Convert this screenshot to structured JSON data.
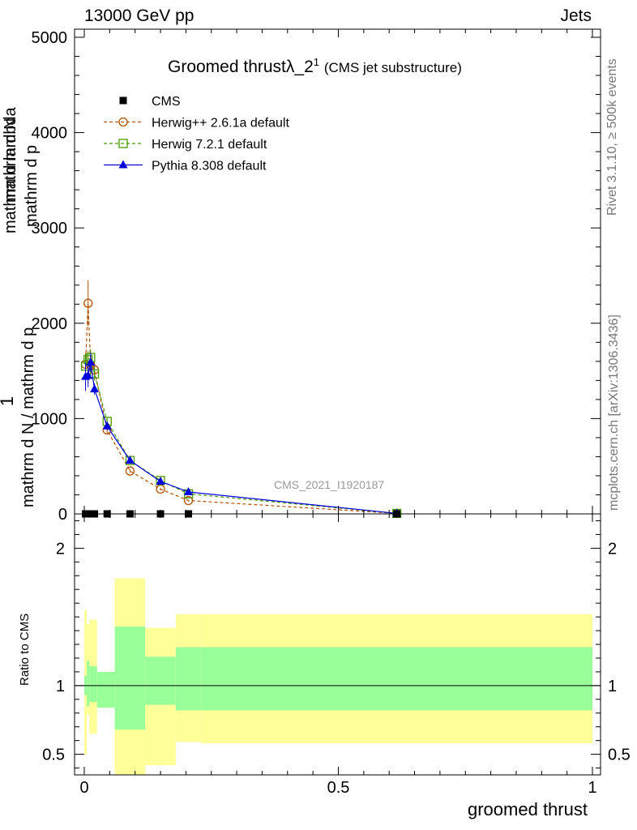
{
  "header": {
    "left": "13000 GeV pp",
    "right": "Jets"
  },
  "side_labels": {
    "rivet": "Rivet 3.1.10, ≥ 500k events",
    "mcplots": "mcplots.cern.ch [arXiv:1306.3436]"
  },
  "chart_data": {
    "type": "line",
    "title": "Groomed thrustλ_2",
    "title_superscript": "1",
    "subtitle": "(CMS jet substructure)",
    "watermark": "CMS_2021_I1920187",
    "xlabel": "groomed thrust",
    "ylabel_main": {
      "numerator": "1",
      "line1": "mathrm d N / mathrm d p",
      "line2": "mathrm d N",
      "line3": "mathrm d p",
      "line4": "mathrm d lambda",
      "full": "mathrm dN mathrm d p_T mathrm d lambda / mathrm d N / mathrm d p_T"
    },
    "ylabel_ratio": "Ratio to CMS",
    "xlim": [
      0,
      1
    ],
    "ylim": [
      0,
      5100
    ],
    "ratio_ylim": [
      0.35,
      2.25
    ],
    "x_ticks": [
      "0",
      "0.5",
      "1"
    ],
    "y_ticks": [
      "0",
      "1000",
      "2000",
      "3000",
      "4000",
      "5000"
    ],
    "ratio_ticks": [
      "0.5",
      "1",
      "2"
    ],
    "legend_position": "top-left",
    "legend": [
      "CMS",
      "Herwig++ 2.6.1a default",
      "Herwig 7.2.1 default",
      "Pythia 8.308 default"
    ],
    "colors": {
      "cms": "#000000",
      "herwigpp": "#b05000",
      "herwig7": "#4a9a00",
      "pythia": "#0000dd",
      "band_inner": "#99ff99",
      "band_outer": "#ffff99"
    },
    "cms": {
      "name": "CMS",
      "x": [
        0.0025,
        0.0075,
        0.0125,
        0.02,
        0.045,
        0.09,
        0.15,
        0.205,
        0.615
      ],
      "y": [
        0,
        0,
        0,
        0,
        0,
        0,
        0,
        0,
        0
      ]
    },
    "series": [
      {
        "name": "Herwig++ 2.6.1a default",
        "x": [
          0.0025,
          0.0075,
          0.0125,
          0.02,
          0.045,
          0.09,
          0.15,
          0.205,
          0.615
        ],
        "y": [
          1570,
          2210,
          1560,
          1510,
          880,
          450,
          260,
          140,
          5
        ],
        "err": [
          120,
          240,
          110,
          80,
          40,
          20,
          15,
          10,
          2
        ]
      },
      {
        "name": "Herwig 7.2.1 default",
        "x": [
          0.0025,
          0.0075,
          0.0125,
          0.02,
          0.045,
          0.09,
          0.15,
          0.205,
          0.615
        ],
        "y": [
          1550,
          1620,
          1640,
          1470,
          970,
          560,
          350,
          210,
          5
        ],
        "err": [
          120,
          90,
          90,
          70,
          40,
          20,
          15,
          10,
          2
        ]
      },
      {
        "name": "Pythia 8.308 default",
        "x": [
          0.0025,
          0.0075,
          0.0125,
          0.02,
          0.045,
          0.09,
          0.15,
          0.205,
          0.615
        ],
        "y": [
          1440,
          1450,
          1590,
          1310,
          920,
          560,
          340,
          230,
          5
        ],
        "err": [
          150,
          120,
          100,
          60,
          40,
          20,
          15,
          10,
          2
        ]
      }
    ],
    "ratio_bands": [
      {
        "x0": 0.0,
        "x1": 0.005,
        "inner": [
          0.93,
          1.07
        ],
        "outer": [
          0.5,
          1.55
        ]
      },
      {
        "x0": 0.005,
        "x1": 0.01,
        "inner": [
          0.85,
          1.18
        ],
        "outer": [
          0.79,
          1.45
        ]
      },
      {
        "x0": 0.01,
        "x1": 0.025,
        "inner": [
          0.88,
          1.14
        ],
        "outer": [
          0.65,
          1.48
        ]
      },
      {
        "x0": 0.025,
        "x1": 0.06,
        "inner": [
          0.84,
          1.1
        ],
        "outer": [
          0.84,
          1.1
        ]
      },
      {
        "x0": 0.06,
        "x1": 0.12,
        "inner": [
          0.68,
          1.43
        ],
        "outer": [
          0.35,
          1.78
        ]
      },
      {
        "x0": 0.12,
        "x1": 0.18,
        "inner": [
          0.86,
          1.21
        ],
        "outer": [
          0.42,
          1.42
        ]
      },
      {
        "x0": 0.18,
        "x1": 0.23,
        "inner": [
          0.82,
          1.28
        ],
        "outer": [
          0.59,
          1.52
        ]
      },
      {
        "x0": 0.23,
        "x1": 1.0,
        "inner": [
          0.82,
          1.28
        ],
        "outer": [
          0.58,
          1.52
        ]
      }
    ]
  }
}
